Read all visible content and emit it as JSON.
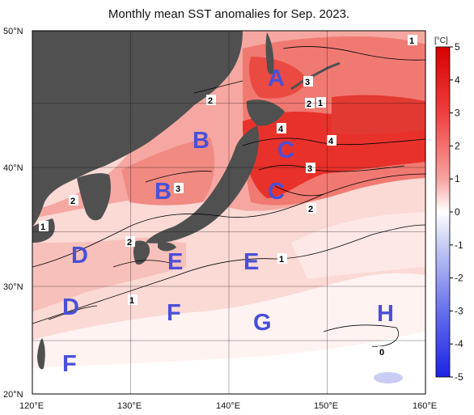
{
  "title": "Monthly mean SST anomalies for Sep. 2023.",
  "lat_labels": [
    "50°N",
    "40°N",
    "30°N",
    "20°N"
  ],
  "lon_labels": [
    "120°E",
    "130°E",
    "140°E",
    "150°E",
    "160°E"
  ],
  "region_labels": [
    {
      "id": "A",
      "text": "A"
    },
    {
      "id": "B1",
      "text": "B"
    },
    {
      "id": "B2",
      "text": "B"
    },
    {
      "id": "C1",
      "text": "C"
    },
    {
      "id": "C2",
      "text": "C"
    },
    {
      "id": "D1",
      "text": "D"
    },
    {
      "id": "D2",
      "text": "D"
    },
    {
      "id": "E1",
      "text": "E"
    },
    {
      "id": "E2",
      "text": "E"
    },
    {
      "id": "F1",
      "text": "F"
    },
    {
      "id": "F2",
      "text": "F"
    },
    {
      "id": "G",
      "text": "G"
    },
    {
      "id": "H",
      "text": "H"
    }
  ],
  "contour_labels": [
    "1",
    "3",
    "2",
    "1",
    "2",
    "4",
    "4",
    "3",
    "2",
    "3",
    "2",
    "1",
    "2",
    "1",
    "1",
    "0"
  ],
  "colorbar": {
    "unit": "[°C]",
    "ticks": [
      "5",
      "4",
      "3",
      "2",
      "1",
      "0",
      "-1",
      "-2",
      "-3",
      "-4",
      "-5"
    ],
    "min": -5,
    "max": 5
  },
  "colors": {
    "land": "#505050",
    "warm_strong": "#e8312b",
    "warm_mid": "#f07a72",
    "warm_light": "#f7b8b2",
    "neutral": "#ffffff",
    "cool_light": "#c9cdf3",
    "cool_strong": "#2a34e6",
    "region_label": "#4a4fd8"
  }
}
